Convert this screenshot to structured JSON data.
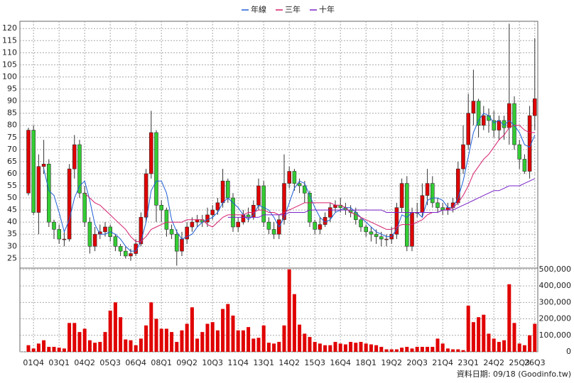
{
  "chart_data": {
    "type": "candlestick",
    "footer": "資料日期: 09/18 (Goodinfo.tw)",
    "up_color": "#e00000",
    "down_color": "#33cc33",
    "grid": true,
    "categories": [
      null,
      "01Q4",
      null,
      null,
      null,
      null,
      "03Q1",
      null,
      null,
      null,
      null,
      "04Q2",
      null,
      null,
      null,
      null,
      "05Q3",
      null,
      null,
      null,
      null,
      "06Q4",
      null,
      null,
      null,
      null,
      "08Q1",
      null,
      null,
      null,
      null,
      "09Q2",
      null,
      null,
      null,
      null,
      "10Q3",
      null,
      null,
      null,
      null,
      "11Q4",
      null,
      null,
      null,
      null,
      "13Q1",
      null,
      null,
      null,
      null,
      "14Q2",
      null,
      null,
      null,
      null,
      "15Q3",
      null,
      null,
      null,
      null,
      "16Q4",
      null,
      null,
      null,
      null,
      "18Q1",
      null,
      null,
      null,
      null,
      "19Q2",
      null,
      null,
      null,
      null,
      "20Q3",
      null,
      null,
      null,
      null,
      "21Q4",
      null,
      null,
      null,
      null,
      "23Q1",
      null,
      null,
      null,
      null,
      "24Q2",
      null,
      null,
      null,
      null,
      "25Q3",
      null,
      null,
      "26Q3"
    ],
    "open": [
      52,
      78,
      44,
      63,
      64,
      40,
      37,
      33,
      33,
      62,
      72,
      52,
      40,
      30,
      35,
      36,
      38,
      34,
      30,
      28,
      26,
      27,
      31,
      42,
      60,
      77,
      47,
      45,
      37,
      35,
      28,
      33,
      38,
      40,
      41,
      40,
      43,
      45,
      48,
      57,
      50,
      38,
      40,
      43,
      42,
      47,
      55,
      40,
      37,
      35,
      41,
      56,
      61,
      56,
      55,
      52,
      40,
      37,
      39,
      42,
      46,
      47,
      46,
      45,
      44,
      41,
      38,
      36,
      35,
      34,
      33,
      33,
      35,
      46,
      56,
      30,
      44,
      44,
      51,
      56,
      48,
      46,
      45,
      46,
      48,
      62,
      72,
      85,
      90,
      80,
      84,
      82,
      78,
      82,
      79,
      89,
      72,
      66,
      61,
      84
    ],
    "high": [
      79,
      80,
      68,
      74,
      66,
      41,
      39,
      36,
      64,
      76,
      74,
      55,
      42,
      38,
      39,
      40,
      39,
      35,
      31,
      30,
      29,
      33,
      44,
      62,
      86,
      78,
      49,
      46,
      39,
      37,
      36,
      40,
      42,
      43,
      43,
      46,
      47,
      50,
      62,
      58,
      52,
      42,
      45,
      46,
      49,
      58,
      57,
      42,
      40,
      43,
      68,
      63,
      62,
      58,
      57,
      53,
      41,
      42,
      44,
      48,
      49,
      50,
      48,
      47,
      46,
      42,
      39,
      38,
      37,
      36,
      35,
      38,
      48,
      58,
      59,
      46,
      48,
      56,
      62,
      59,
      50,
      48,
      48,
      50,
      65,
      80,
      93,
      103,
      91,
      88,
      87,
      86,
      84,
      84,
      122,
      92,
      74,
      68,
      88,
      116
    ],
    "low": [
      51,
      43,
      35,
      60,
      38,
      33,
      31,
      30,
      32,
      58,
      50,
      38,
      27,
      28,
      33,
      34,
      32,
      28,
      26,
      25,
      24,
      26,
      30,
      40,
      58,
      40,
      40,
      34,
      33,
      22,
      26,
      31,
      36,
      38,
      38,
      38,
      41,
      43,
      46,
      48,
      36,
      36,
      39,
      40,
      41,
      45,
      38,
      35,
      33,
      33,
      39,
      54,
      53,
      52,
      48,
      38,
      35,
      35,
      38,
      40,
      44,
      44,
      43,
      42,
      39,
      36,
      34,
      32,
      31,
      30,
      30,
      31,
      33,
      44,
      28,
      28,
      42,
      42,
      47,
      46,
      44,
      43,
      43,
      44,
      47,
      60,
      70,
      80,
      75,
      78,
      77,
      75,
      74,
      74,
      72,
      70,
      62,
      60,
      58,
      78
    ],
    "close": [
      78,
      44,
      63,
      64,
      40,
      37,
      33,
      33,
      62,
      72,
      52,
      40,
      30,
      35,
      36,
      38,
      34,
      30,
      28,
      26,
      27,
      31,
      42,
      60,
      77,
      47,
      45,
      37,
      35,
      28,
      33,
      38,
      40,
      41,
      40,
      43,
      45,
      48,
      57,
      50,
      38,
      40,
      43,
      42,
      47,
      55,
      40,
      37,
      35,
      41,
      56,
      61,
      56,
      55,
      52,
      40,
      37,
      39,
      42,
      46,
      47,
      46,
      45,
      44,
      41,
      38,
      36,
      35,
      34,
      33,
      33,
      35,
      46,
      56,
      30,
      44,
      44,
      51,
      56,
      48,
      46,
      45,
      46,
      48,
      62,
      72,
      85,
      90,
      80,
      84,
      82,
      78,
      82,
      79,
      89,
      72,
      66,
      61,
      84,
      91
    ],
    "ylim": [
      21,
      123
    ],
    "yticks": [
      25,
      30,
      35,
      40,
      45,
      50,
      55,
      60,
      65,
      70,
      75,
      80,
      85,
      90,
      95,
      100,
      105,
      110,
      115,
      120
    ],
    "lines": [
      {
        "name": "年線",
        "color": "#1f5fd6",
        "values": [
          null,
          null,
          null,
          62,
          53,
          51,
          44,
          36,
          41,
          50,
          55,
          57,
          49,
          39,
          35,
          35,
          36,
          35,
          33,
          30,
          28,
          28,
          32,
          40,
          53,
          57,
          57,
          52,
          41,
          36,
          33,
          34,
          35,
          38,
          40,
          41,
          42,
          44,
          48,
          50,
          48,
          46,
          43,
          41,
          43,
          47,
          46,
          45,
          42,
          38,
          42,
          48,
          54,
          57,
          56,
          51,
          46,
          42,
          40,
          41,
          44,
          45,
          46,
          46,
          44,
          42,
          40,
          38,
          36,
          35,
          34,
          34,
          37,
          43,
          42,
          44,
          44,
          42,
          49,
          50,
          50,
          49,
          46,
          46,
          50,
          57,
          67,
          77,
          82,
          85,
          84,
          81,
          82,
          80,
          82,
          80,
          77,
          72,
          71,
          76
        ]
      },
      {
        "name": "三年",
        "color": "#d6206e",
        "values": [
          null,
          null,
          null,
          null,
          null,
          null,
          null,
          null,
          null,
          null,
          null,
          52,
          50,
          48,
          47,
          45,
          43,
          41,
          39,
          37,
          34,
          32,
          32,
          34,
          37,
          38,
          39,
          40,
          40,
          40,
          40,
          41,
          41,
          41,
          41,
          39,
          38,
          40,
          42,
          43,
          43,
          43,
          43,
          44,
          44,
          45,
          45,
          44,
          44,
          43,
          44,
          45,
          46,
          47,
          48,
          48,
          48,
          48,
          48,
          48,
          47,
          47,
          46,
          44,
          43,
          42,
          41,
          40,
          39,
          38,
          37,
          37,
          38,
          39,
          39,
          39,
          40,
          41,
          43,
          44,
          44,
          45,
          45,
          46,
          48,
          51,
          55,
          60,
          63,
          66,
          68,
          71,
          74,
          76,
          79,
          80,
          80,
          78,
          77,
          77
        ]
      },
      {
        "name": "十年",
        "color": "#7a22c8",
        "values": [
          null,
          null,
          null,
          null,
          null,
          null,
          null,
          null,
          null,
          null,
          null,
          null,
          null,
          null,
          null,
          null,
          null,
          null,
          null,
          null,
          null,
          null,
          null,
          null,
          null,
          null,
          null,
          null,
          null,
          null,
          null,
          null,
          null,
          null,
          null,
          null,
          null,
          null,
          null,
          42,
          42,
          42,
          42,
          42,
          42,
          42,
          43,
          43,
          43,
          43,
          43,
          44,
          44,
          44,
          44,
          45,
          45,
          45,
          45,
          45,
          45,
          45,
          45,
          45,
          45,
          45,
          45,
          45,
          45,
          45,
          44,
          44,
          44,
          44,
          44,
          44,
          44,
          44,
          44,
          44,
          44,
          45,
          45,
          45,
          46,
          47,
          48,
          49,
          50,
          51,
          52,
          53,
          53,
          54,
          55,
          55,
          55,
          56,
          57,
          58
        ]
      }
    ],
    "volume": {
      "color": "#e00000",
      "ylim": [
        0,
        508000
      ],
      "yticks": [
        0,
        {
          "value": 100000,
          "label": "100,000"
        },
        {
          "value": 200000,
          "label": "200,000"
        },
        {
          "value": 300000,
          "label": "300,000"
        },
        {
          "value": 400000,
          "label": "400,000"
        },
        {
          "value": 500000,
          "label": "500,000"
        }
      ],
      "values": [
        40000,
        20000,
        50000,
        70000,
        30000,
        30000,
        25000,
        20000,
        175000,
        175000,
        120000,
        140000,
        70000,
        55000,
        60000,
        120000,
        250000,
        300000,
        210000,
        75000,
        70000,
        40000,
        80000,
        160000,
        300000,
        200000,
        140000,
        140000,
        120000,
        60000,
        130000,
        170000,
        270000,
        80000,
        120000,
        170000,
        180000,
        130000,
        260000,
        290000,
        220000,
        130000,
        130000,
        150000,
        80000,
        85000,
        160000,
        55000,
        50000,
        60000,
        160000,
        500000,
        350000,
        165000,
        110000,
        90000,
        60000,
        50000,
        40000,
        40000,
        60000,
        50000,
        45000,
        60000,
        55000,
        60000,
        50000,
        45000,
        40000,
        30000,
        15000,
        15000,
        15000,
        25000,
        30000,
        20000,
        30000,
        30000,
        30000,
        30000,
        80000,
        50000,
        20000,
        15000,
        15000,
        10000,
        280000,
        180000,
        210000,
        225000,
        110000,
        80000,
        60000,
        70000,
        410000,
        175000,
        50000,
        40000,
        100000,
        170000
      ]
    }
  }
}
